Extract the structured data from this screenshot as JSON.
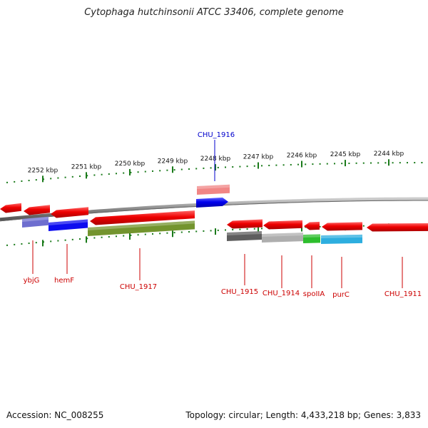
{
  "title": "Cytophaga hutchinsonii ATCC 33406, complete genome",
  "footer": {
    "accession": "Accession: NC_008255",
    "topology": "Topology: circular; Length: 4,433,218 bp; Genes: 3,833"
  },
  "colors": {
    "forward_gene": "#0000ee",
    "reverse_gene": "#ee0000",
    "tick": "#1a7a1a",
    "backbone": "#888888",
    "label_red": "#cc0000",
    "label_blue": "#0000cc"
  },
  "scale": {
    "ticks": [
      {
        "label": "2252 kbp"
      },
      {
        "label": "2251 kbp"
      },
      {
        "label": "2250 kbp"
      },
      {
        "label": "2249 kbp"
      },
      {
        "label": "2248 kbp"
      },
      {
        "label": "2247 kbp"
      },
      {
        "label": "2246 kbp"
      },
      {
        "label": "2245 kbp"
      },
      {
        "label": "2244 kbp"
      }
    ]
  },
  "genes": [
    {
      "name": "ybjG",
      "category_color": "#6666cc"
    },
    {
      "name": "hemF",
      "category_color": "#0000ee"
    },
    {
      "name": "CHU_1917",
      "category_color": "#6b8e23"
    },
    {
      "name": "CHU_1916",
      "category_color": "#f08080"
    },
    {
      "name": "CHU_1915",
      "category_color": "#555555"
    },
    {
      "name": "CHU_1914",
      "category_color": "#aaaaaa"
    },
    {
      "name": "spoIIA",
      "category_color": "#22bb22"
    },
    {
      "name": "purC",
      "category_color": "#22aadd"
    },
    {
      "name": "CHU_1911",
      "category_color": "#ffffff"
    }
  ]
}
